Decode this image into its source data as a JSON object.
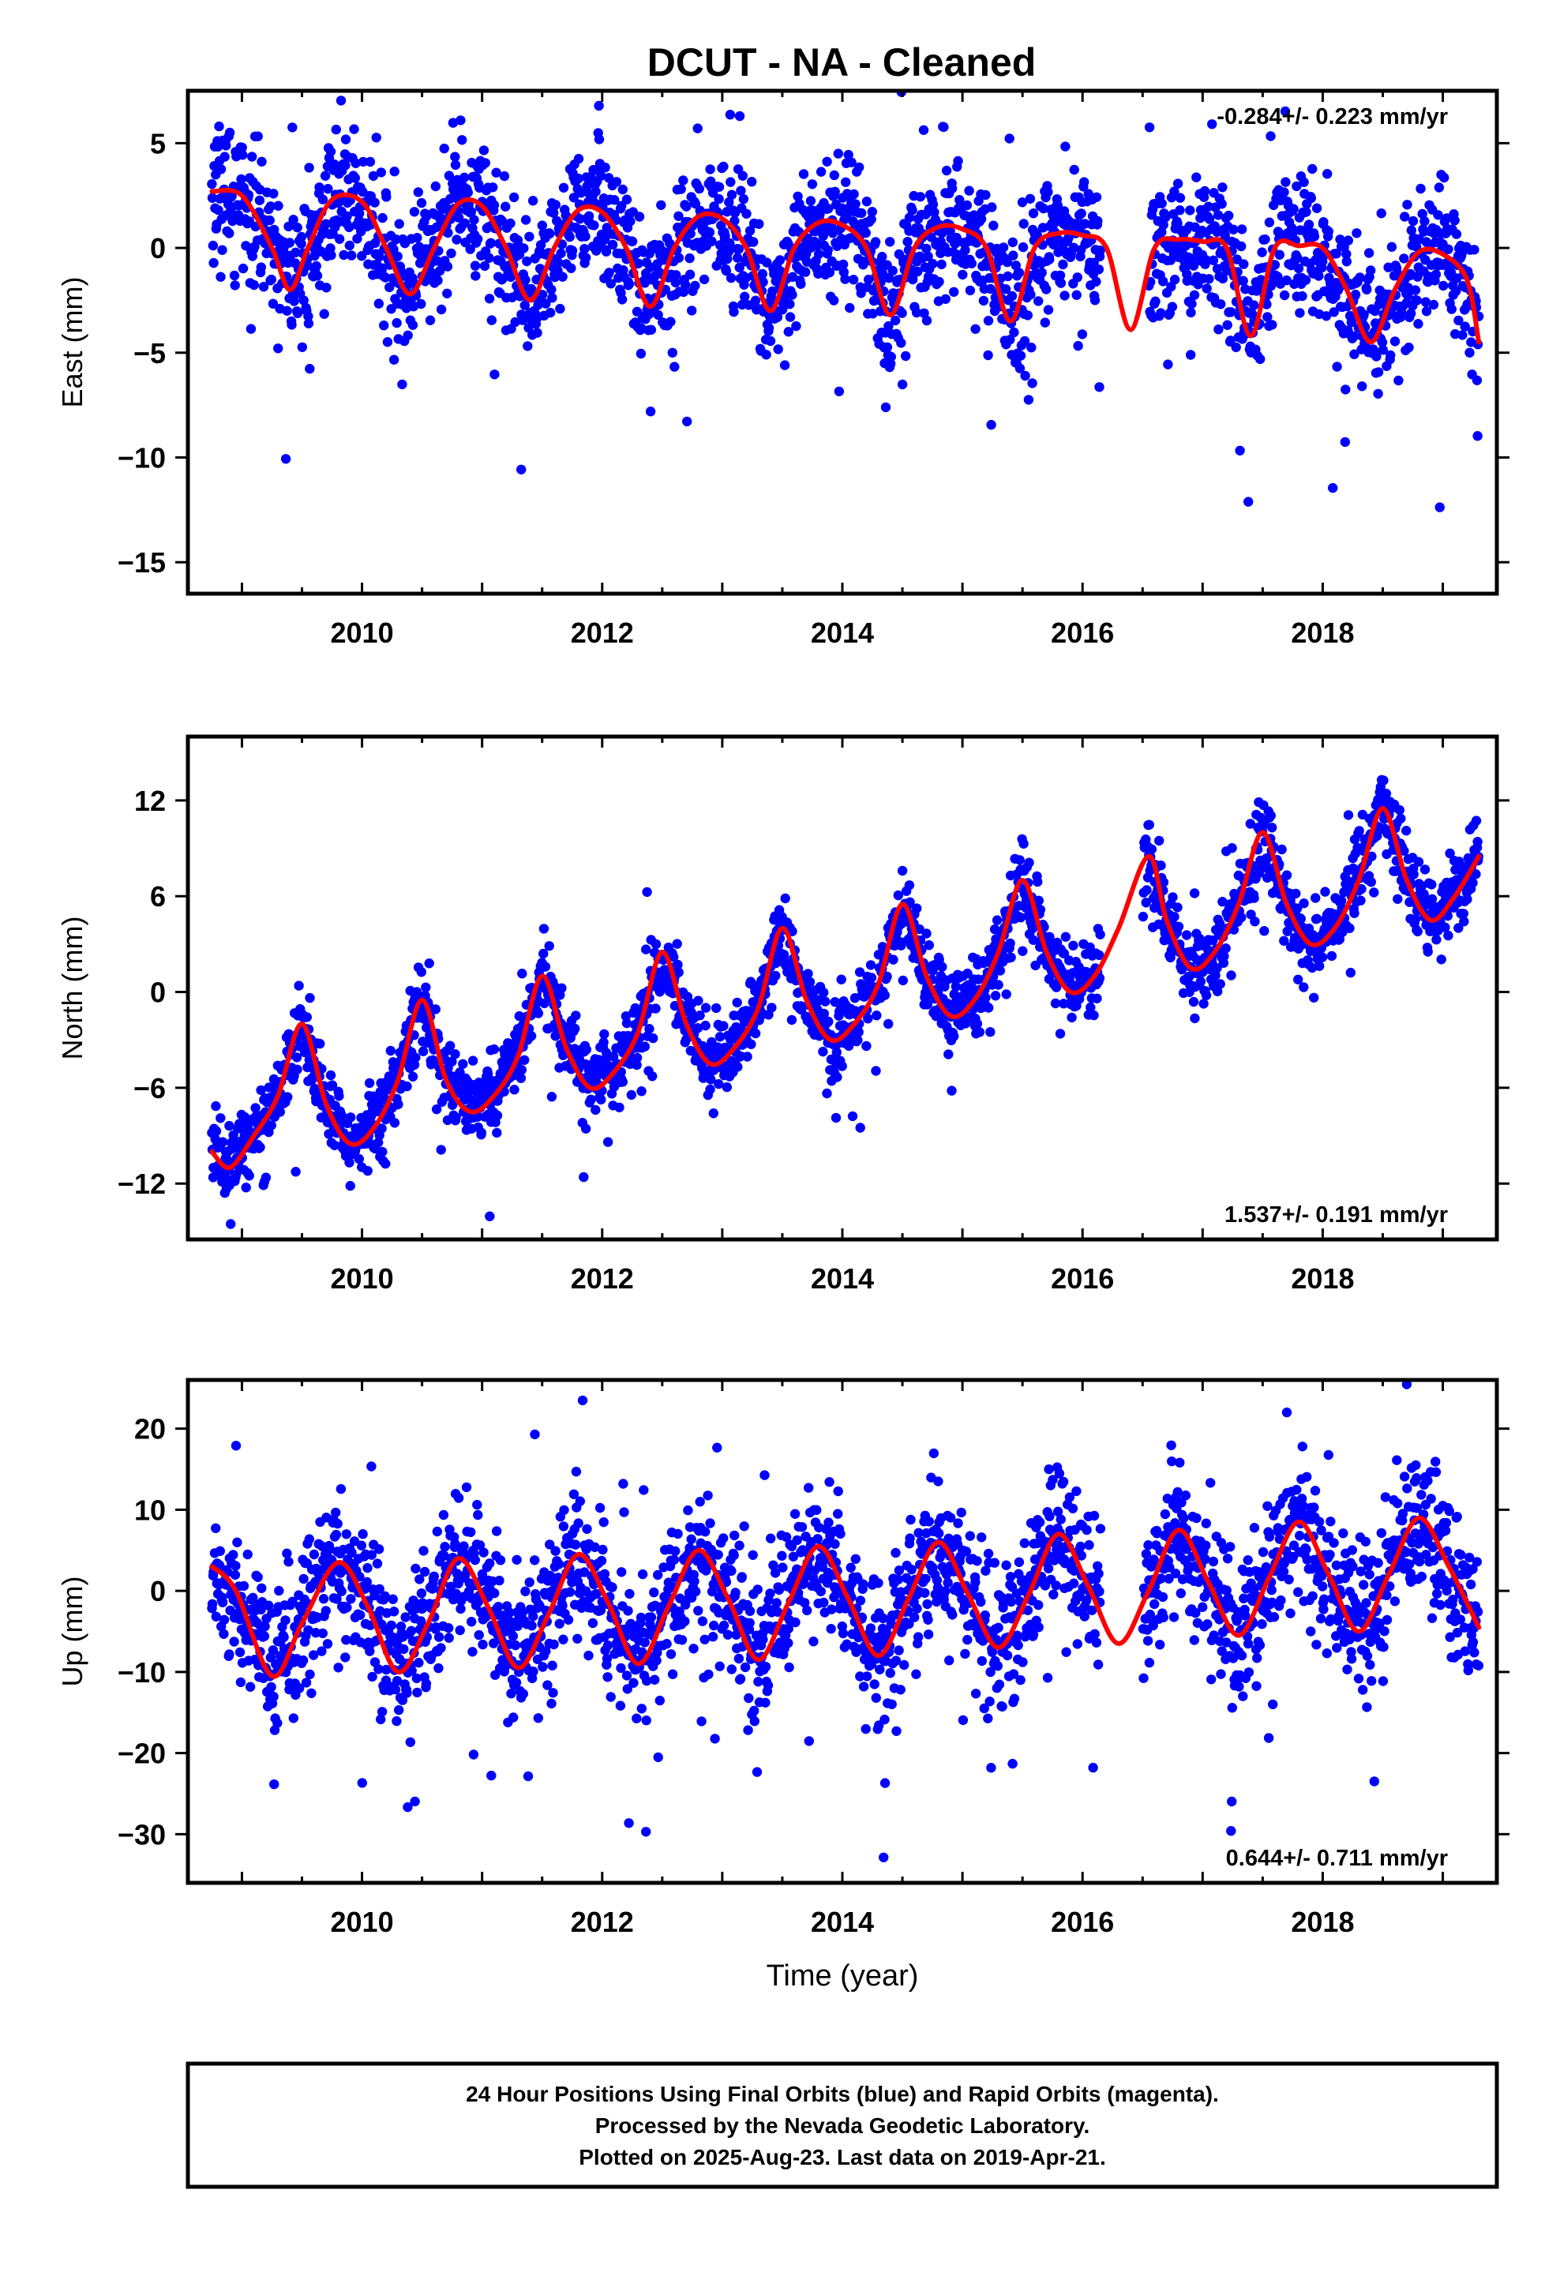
{
  "title": "DCUT  - NA - Cleaned",
  "footer": {
    "lines": [
      "24 Hour Positions Using Final Orbits (blue) and Rapid Orbits (magenta).",
      "Processed by the Nevada Geodetic Laboratory.",
      "Plotted on 2025-Aug-23. Last data on 2019-Apr-21."
    ]
  },
  "colors": {
    "points": "#0000ff",
    "model": "#ff0000",
    "axes": "#000000"
  },
  "chart_data": [
    {
      "type": "scatter",
      "ylabel": "East (mm)",
      "rate": "-0.284+/- 0.223 mm/yr",
      "rate_position": "top-right",
      "xlim": [
        2008.55,
        2019.45
      ],
      "ylim": [
        -16.5,
        7.5
      ],
      "xticks": [
        2010,
        2012,
        2014,
        2016,
        2018
      ],
      "xtick_labels": [
        "2010",
        "2012",
        "2014",
        "2016",
        "2018"
      ],
      "yticks": [
        5,
        0,
        -5,
        -10,
        -15
      ],
      "ytick_labels": [
        "5",
        "0",
        "−5",
        "−10",
        "−15"
      ],
      "model": {
        "name": "",
        "x": [
          2008.75,
          2009.0,
          2009.25,
          2009.4,
          2009.55,
          2009.75,
          2010.0,
          2010.2,
          2010.4,
          2010.6,
          2010.8,
          2011.0,
          2011.2,
          2011.4,
          2011.6,
          2011.8,
          2012.0,
          2012.2,
          2012.4,
          2012.6,
          2012.8,
          2013.0,
          2013.2,
          2013.4,
          2013.6,
          2013.8,
          2014.0,
          2014.2,
          2014.4,
          2014.6,
          2014.8,
          2015.0,
          2015.2,
          2015.4,
          2015.6,
          2015.8,
          2016.0,
          2016.2,
          2016.4,
          2016.6,
          2016.8,
          2017.0,
          2017.2,
          2017.4,
          2017.6,
          2017.8,
          2018.0,
          2018.2,
          2018.4,
          2018.6,
          2018.8,
          2019.0,
          2019.2,
          2019.3
        ],
        "y": [
          2.7,
          2.5,
          0.0,
          -2.0,
          0.0,
          2.3,
          2.2,
          0.0,
          -2.2,
          0.0,
          2.1,
          2.0,
          0.0,
          -2.5,
          0.0,
          1.8,
          1.7,
          0.0,
          -2.8,
          0.0,
          1.5,
          1.4,
          0.0,
          -3.0,
          0.0,
          1.2,
          1.1,
          0.0,
          -3.2,
          0.0,
          1.0,
          0.9,
          0.0,
          -3.5,
          0.0,
          0.7,
          0.6,
          0.0,
          -3.9,
          0.0,
          0.4,
          0.3,
          0.0,
          -4.2,
          0.0,
          0.1,
          0.0,
          -2.0,
          -4.5,
          -2.0,
          -0.2,
          -0.3,
          -1.5,
          -4.5
        ]
      },
      "scatter": {
        "name": "",
        "gaps": [
          [
            2016.15,
            2016.55
          ]
        ],
        "seasonal_model": "model",
        "spread_mm": 1.6
      }
    },
    {
      "type": "scatter",
      "ylabel": "North (mm)",
      "rate": "1.537+/- 0.191 mm/yr",
      "rate_position": "bottom-right",
      "xlim": [
        2008.55,
        2019.45
      ],
      "ylim": [
        -15.5,
        16
      ],
      "xticks": [
        2010,
        2012,
        2014,
        2016,
        2018
      ],
      "xtick_labels": [
        "2010",
        "2012",
        "2014",
        "2016",
        "2018"
      ],
      "yticks": [
        12,
        6,
        0,
        -6,
        -12
      ],
      "ytick_labels": [
        "12",
        "6",
        "0",
        "−6",
        "−12"
      ],
      "model": {
        "name": "",
        "x": [
          2008.75,
          2008.9,
          2009.1,
          2009.3,
          2009.5,
          2009.7,
          2009.9,
          2010.1,
          2010.3,
          2010.5,
          2010.7,
          2010.9,
          2011.1,
          2011.3,
          2011.5,
          2011.7,
          2011.9,
          2012.1,
          2012.3,
          2012.5,
          2012.7,
          2012.9,
          2013.1,
          2013.3,
          2013.5,
          2013.7,
          2013.9,
          2014.1,
          2014.3,
          2014.5,
          2014.7,
          2014.9,
          2015.1,
          2015.3,
          2015.5,
          2015.7,
          2015.9,
          2016.1,
          2016.3,
          2016.55,
          2016.7,
          2016.9,
          2017.1,
          2017.3,
          2017.5,
          2017.7,
          2017.9,
          2018.1,
          2018.3,
          2018.5,
          2018.7,
          2018.9,
          2019.1,
          2019.3
        ],
        "y": [
          -10.0,
          -11.0,
          -9.0,
          -6.5,
          -2.0,
          -7.0,
          -9.5,
          -8.5,
          -5.5,
          -0.5,
          -5.5,
          -7.5,
          -6.5,
          -4.0,
          1.0,
          -3.5,
          -6.0,
          -5.0,
          -2.5,
          2.5,
          -2.0,
          -4.5,
          -3.5,
          -1.0,
          4.0,
          -0.5,
          -3.0,
          -2.0,
          0.5,
          5.5,
          1.0,
          -1.5,
          -0.5,
          2.5,
          7.0,
          2.5,
          0.0,
          1.0,
          4.0,
          8.5,
          4.5,
          1.5,
          2.5,
          5.5,
          10.0,
          5.5,
          3.0,
          4.0,
          7.0,
          11.5,
          7.0,
          4.5,
          6.0,
          8.5
        ]
      },
      "scatter": {
        "name": "",
        "gaps": [
          [
            2016.15,
            2016.5
          ]
        ],
        "seasonal_model": "model",
        "spread_mm": 1.2
      }
    },
    {
      "type": "scatter",
      "ylabel": "Up (mm)",
      "xlabel": "Time (year)",
      "rate": "0.644+/- 0.711 mm/yr",
      "rate_position": "bottom-right",
      "xlim": [
        2008.55,
        2019.45
      ],
      "ylim": [
        -36,
        26
      ],
      "xticks": [
        2010,
        2012,
        2014,
        2016,
        2018
      ],
      "xtick_labels": [
        "2010",
        "2012",
        "2014",
        "2016",
        "2018"
      ],
      "yticks": [
        20,
        10,
        0,
        -10,
        -20,
        -30
      ],
      "ytick_labels": [
        "20",
        "10",
        "0",
        "−10",
        "−20",
        "−30"
      ],
      "model": {
        "name": "",
        "x": [
          2008.75,
          2008.95,
          2009.25,
          2009.5,
          2009.8,
          2010.05,
          2010.3,
          2010.55,
          2010.8,
          2011.05,
          2011.3,
          2011.55,
          2011.8,
          2012.05,
          2012.3,
          2012.55,
          2012.8,
          2013.05,
          2013.3,
          2013.55,
          2013.8,
          2014.05,
          2014.3,
          2014.55,
          2014.8,
          2015.05,
          2015.3,
          2015.55,
          2015.8,
          2016.05,
          2016.3,
          2016.55,
          2016.8,
          2017.05,
          2017.3,
          2017.55,
          2017.8,
          2018.05,
          2018.3,
          2018.55,
          2018.8,
          2019.05,
          2019.3
        ],
        "y": [
          3.0,
          0.0,
          -10.5,
          -4.0,
          3.5,
          -2.0,
          -10.0,
          -4.0,
          4.0,
          -2.0,
          -9.5,
          -3.0,
          4.5,
          -1.5,
          -9.0,
          -2.0,
          5.0,
          -1.0,
          -8.5,
          -1.5,
          5.5,
          -1.0,
          -8.0,
          -1.0,
          6.0,
          -0.5,
          -7.0,
          -0.5,
          7.0,
          0.5,
          -6.5,
          0.0,
          7.5,
          1.0,
          -5.5,
          1.5,
          8.5,
          2.0,
          -5.0,
          2.0,
          9.0,
          3.0,
          -4.5
        ]
      },
      "scatter": {
        "name": "",
        "gaps": [
          [
            2016.15,
            2016.5
          ]
        ],
        "seasonal_model": "model",
        "spread_mm": 4.5
      }
    }
  ]
}
